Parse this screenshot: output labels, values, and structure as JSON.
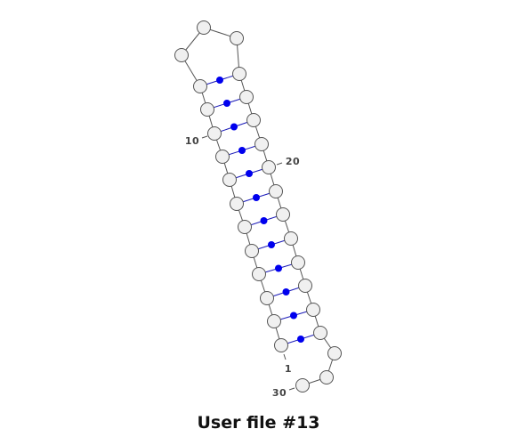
{
  "caption": "User file #13",
  "diagram": {
    "type": "rna-secondary-structure",
    "nucleotide_count": 31,
    "base_pairs": [
      [
        1,
        29
      ],
      [
        2,
        28
      ],
      [
        3,
        27
      ],
      [
        4,
        26
      ],
      [
        5,
        25
      ],
      [
        6,
        24
      ],
      [
        7,
        23
      ],
      [
        8,
        22
      ],
      [
        9,
        21
      ],
      [
        10,
        20
      ],
      [
        11,
        19
      ],
      [
        12,
        18
      ]
    ],
    "position_labels": [
      {
        "index": 1,
        "text": "1"
      },
      {
        "index": 10,
        "text": "10"
      },
      {
        "index": 20,
        "text": "20"
      },
      {
        "index": 30,
        "text": "30"
      }
    ],
    "colors": {
      "backbone": "#555555",
      "pair_line": "#1a1ab8",
      "pair_dot": "#0000ee",
      "nucleotide_fill": "#f0f0f0"
    }
  }
}
